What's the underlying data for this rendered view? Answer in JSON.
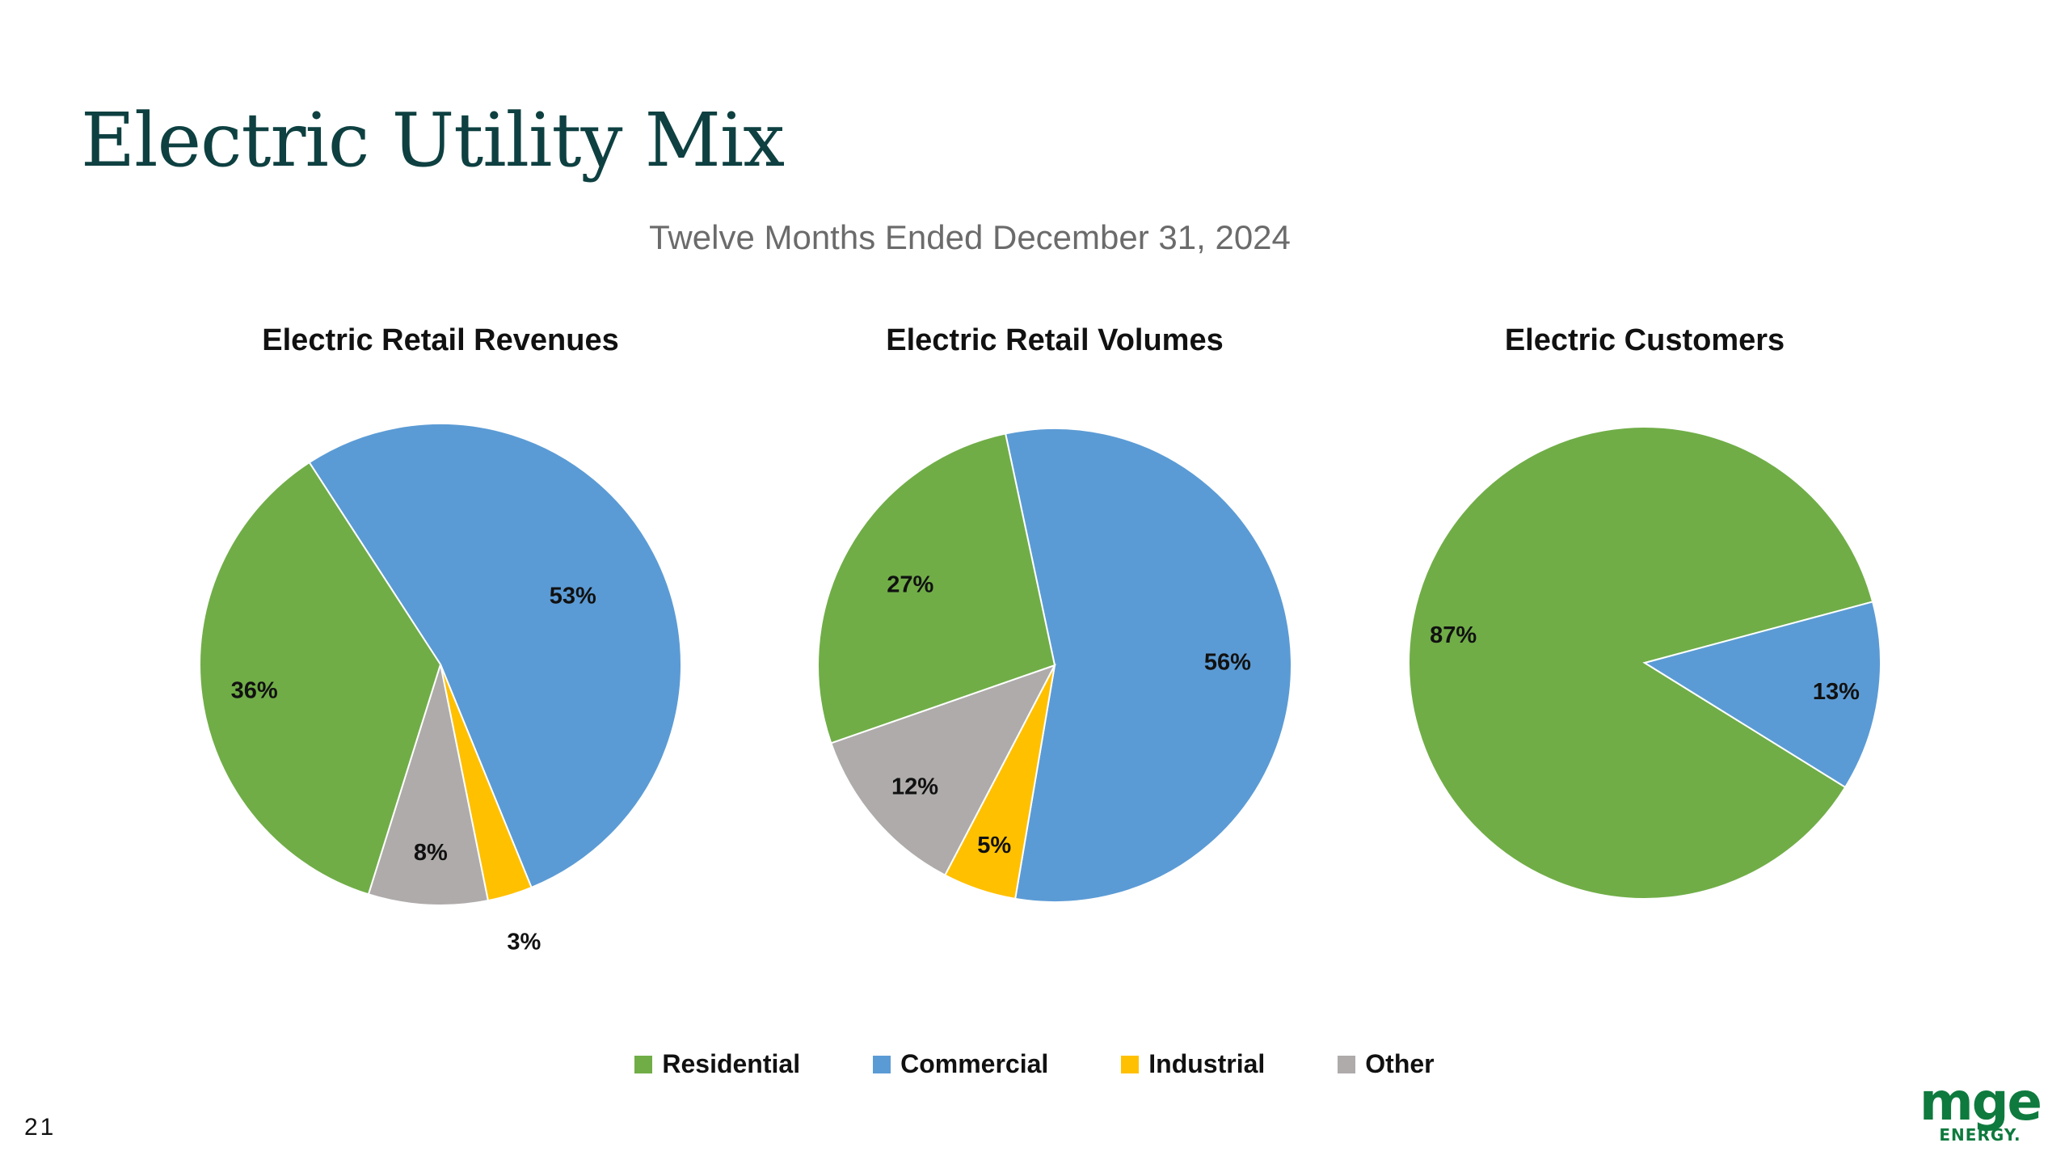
{
  "slide": {
    "title": "Electric Utility Mix",
    "subtitle": "Twelve Months Ended December 31, 2024",
    "page_number": "21",
    "logo_main": "mge",
    "logo_sub": "ENERGY."
  },
  "colors": {
    "Residential": "#70ad47",
    "Commercial": "#5b9bd5",
    "Industrial": "#ffc000",
    "Other": "#afabab"
  },
  "legend": [
    "Residential",
    "Commercial",
    "Industrial",
    "Other"
  ],
  "chart_data": [
    {
      "type": "pie",
      "title": "Electric Retail Revenues",
      "categories": [
        "Residential",
        "Commercial",
        "Industrial",
        "Other"
      ],
      "values": [
        36,
        53,
        3,
        8
      ],
      "labels": [
        "36%",
        "53%",
        "3%",
        "8%"
      ]
    },
    {
      "type": "pie",
      "title": "Electric Retail Volumes",
      "categories": [
        "Residential",
        "Commercial",
        "Industrial",
        "Other"
      ],
      "values": [
        27,
        56,
        5,
        12
      ],
      "labels": [
        "27%",
        "56%",
        "5%",
        "12%"
      ]
    },
    {
      "type": "pie",
      "title": "Electric Customers",
      "categories": [
        "Residential",
        "Commercial"
      ],
      "values": [
        87,
        13
      ],
      "labels": [
        "87%",
        "13%"
      ]
    }
  ]
}
